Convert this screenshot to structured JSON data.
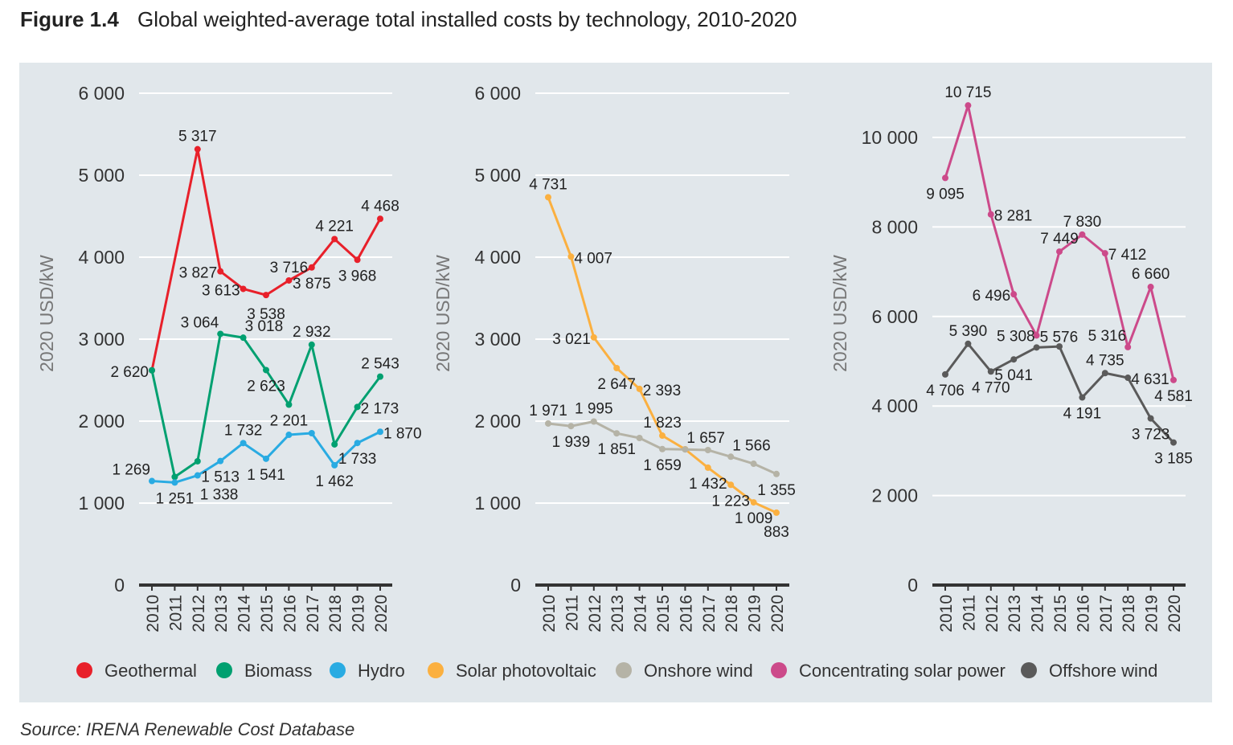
{
  "figure": {
    "number": "Figure 1.4",
    "title": "Global weighted-average total installed costs by technology, 2010-2020"
  },
  "source": "Source: IRENA Renewable Cost Database",
  "chart_data": [
    {
      "type": "line",
      "ylabel": "2020 USD/kW",
      "ylim": [
        0,
        6000
      ],
      "yticks": [
        0,
        1000,
        2000,
        3000,
        4000,
        5000,
        6000
      ],
      "ytick_labels": [
        "0",
        "1 000",
        "2 000",
        "3 000",
        "4 000",
        "5 000",
        "6 000"
      ],
      "x": [
        "2010",
        "2011",
        "2012",
        "2013",
        "2014",
        "2015",
        "2016",
        "2017",
        "2018",
        "2019",
        "2020"
      ],
      "grid": true,
      "series": [
        {
          "name": "Geothermal",
          "color": "#e8202a",
          "values": [
            2620,
            null,
            5317,
            3827,
            3613,
            3538,
            3716,
            3875,
            4221,
            3968,
            4468
          ],
          "labels": [
            null,
            null,
            "5 317",
            "3 827",
            "3 613",
            "3 538",
            "3 716",
            "3 875",
            "4 221",
            "3 968",
            "4 468"
          ]
        },
        {
          "name": "Biomass",
          "color": "#00a070",
          "values": [
            2620,
            1320,
            1510,
            3064,
            3018,
            2623,
            2201,
            2932,
            1716,
            2173,
            2543
          ],
          "labels": [
            "2 620",
            null,
            null,
            "3 064",
            "3 018",
            "2 623",
            "2 201",
            "2 932",
            null,
            "2 173",
            "2 543"
          ]
        },
        {
          "name": "Hydro",
          "color": "#29abe2",
          "values": [
            1269,
            1251,
            1338,
            1513,
            1732,
            1541,
            1833,
            1853,
            1462,
            1733,
            1870
          ],
          "labels": [
            "1 269",
            "1 251",
            "1 338",
            "1 513",
            "1 732",
            "1 541",
            null,
            null,
            "1 462",
            "1 733",
            "1 870"
          ]
        }
      ]
    },
    {
      "type": "line",
      "ylabel": "2020 USD/kW",
      "ylim": [
        0,
        6000
      ],
      "yticks": [
        0,
        1000,
        2000,
        3000,
        4000,
        5000,
        6000
      ],
      "ytick_labels": [
        "0",
        "1 000",
        "2 000",
        "3 000",
        "4 000",
        "5 000",
        "6 000"
      ],
      "x": [
        "2010",
        "2011",
        "2012",
        "2013",
        "2014",
        "2015",
        "2016",
        "2017",
        "2018",
        "2019",
        "2020"
      ],
      "grid": true,
      "series": [
        {
          "name": "Solar photovoltaic",
          "color": "#fbb040",
          "values": [
            4731,
            4007,
            3021,
            2647,
            2393,
            1823,
            1657,
            1432,
            1223,
            1009,
            883
          ],
          "labels": [
            "4 731",
            "4 007",
            "3 021",
            "2 647",
            "2 393",
            "1 823",
            "1 657",
            "1 432",
            "1 223",
            "1 009",
            "883"
          ]
        },
        {
          "name": "Onshore wind",
          "color": "#b5b3a6",
          "values": [
            1971,
            1939,
            1995,
            1851,
            1794,
            1659,
            1655,
            1647,
            1566,
            1480,
            1355
          ],
          "labels": [
            "1 971",
            "1 939",
            "1 995",
            "1 851",
            null,
            "1 659",
            null,
            null,
            "1 566",
            null,
            "1 355"
          ]
        }
      ]
    },
    {
      "type": "line",
      "ylabel": "2020 USD/kW",
      "ylim": [
        0,
        11000
      ],
      "yticks": [
        0,
        2000,
        4000,
        6000,
        8000,
        10000
      ],
      "ytick_labels": [
        "0",
        "2 000",
        "4 000",
        "6 000",
        "8 000",
        "10 000"
      ],
      "x": [
        "2010",
        "2011",
        "2012",
        "2013",
        "2014",
        "2015",
        "2016",
        "2017",
        "2018",
        "2019",
        "2020"
      ],
      "grid": true,
      "series": [
        {
          "name": "Concentrating solar power",
          "color": "#cc4a8a",
          "values": [
            9095,
            10715,
            8281,
            6496,
            5576,
            7449,
            7830,
            7412,
            5316,
            6660,
            4581
          ],
          "labels": [
            "9 095",
            "10 715",
            "8 281",
            "6 496",
            "5 576",
            "7 449",
            "7 830",
            "7 412",
            "5 316",
            "6 660",
            "4 581"
          ]
        },
        {
          "name": "Offshore wind",
          "color": "#5a5a5a",
          "values": [
            4706,
            5390,
            4770,
            5041,
            5308,
            5330,
            4191,
            4735,
            4631,
            3723,
            3185
          ],
          "labels": [
            "4 706",
            "5 390",
            "4 770",
            "5 041",
            "5 308",
            null,
            "4 191",
            "4 735",
            "4 631",
            "3 723",
            "3 185"
          ]
        }
      ]
    }
  ],
  "legend": {
    "placement": "bottom",
    "items": [
      {
        "label": "Geothermal",
        "color": "#e8202a"
      },
      {
        "label": "Biomass",
        "color": "#00a070"
      },
      {
        "label": "Hydro",
        "color": "#29abe2"
      },
      {
        "label": "Solar photovoltaic",
        "color": "#fbb040"
      },
      {
        "label": "Onshore wind",
        "color": "#b5b3a6"
      },
      {
        "label": "Concentrating solar power",
        "color": "#cc4a8a"
      },
      {
        "label": "Offshore wind",
        "color": "#5a5a5a"
      }
    ]
  }
}
